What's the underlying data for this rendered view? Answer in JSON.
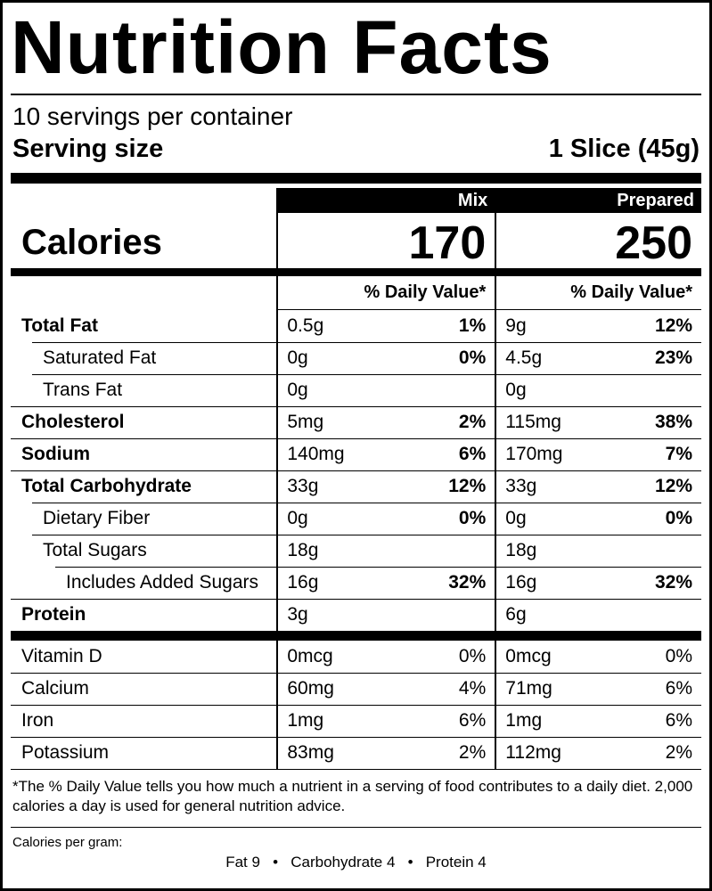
{
  "label": {
    "title": "Nutrition Facts",
    "servings_per_container": "10 servings per container",
    "serving_size": {
      "label": "Serving size",
      "value": "1 Slice (45g)"
    },
    "column_headers": {
      "mix": "Mix",
      "prepared": "Prepared"
    },
    "calories": {
      "label": "Calories",
      "mix": "170",
      "prepared": "250"
    },
    "daily_value_header": "% Daily Value*",
    "nutrients": [
      {
        "name": "Total Fat",
        "mix_amount": "0.5g",
        "mix_dv": "1%",
        "prepared_amount": "9g",
        "prepared_dv": "12%"
      },
      {
        "name": "Saturated Fat",
        "mix_amount": "0g",
        "mix_dv": "0%",
        "prepared_amount": "4.5g",
        "prepared_dv": "23%"
      },
      {
        "name": "Trans Fat",
        "mix_amount": "0g",
        "mix_dv": "",
        "prepared_amount": "0g",
        "prepared_dv": ""
      },
      {
        "name": "Cholesterol",
        "mix_amount": "5mg",
        "mix_dv": "2%",
        "prepared_amount": "115mg",
        "prepared_dv": "38%"
      },
      {
        "name": "Sodium",
        "mix_amount": "140mg",
        "mix_dv": "6%",
        "prepared_amount": "170mg",
        "prepared_dv": "7%"
      },
      {
        "name": "Total Carbohydrate",
        "mix_amount": "33g",
        "mix_dv": "12%",
        "prepared_amount": "33g",
        "prepared_dv": "12%"
      },
      {
        "name": "Dietary Fiber",
        "mix_amount": "0g",
        "mix_dv": "0%",
        "prepared_amount": "0g",
        "prepared_dv": "0%"
      },
      {
        "name": "Total Sugars",
        "mix_amount": "18g",
        "mix_dv": "",
        "prepared_amount": "18g",
        "prepared_dv": ""
      },
      {
        "name": "Includes Added Sugars",
        "mix_amount": "16g",
        "mix_dv": "32%",
        "prepared_amount": "16g",
        "prepared_dv": "32%"
      },
      {
        "name": "Protein",
        "mix_amount": "3g",
        "mix_dv": "",
        "prepared_amount": "6g",
        "prepared_dv": ""
      }
    ],
    "micronutrients": [
      {
        "name": "Vitamin D",
        "mix_amount": "0mcg",
        "mix_dv": "0%",
        "prepared_amount": "0mcg",
        "prepared_dv": "0%"
      },
      {
        "name": "Calcium",
        "mix_amount": "60mg",
        "mix_dv": "4%",
        "prepared_amount": "71mg",
        "prepared_dv": "6%"
      },
      {
        "name": "Iron",
        "mix_amount": "1mg",
        "mix_dv": "6%",
        "prepared_amount": "1mg",
        "prepared_dv": "6%"
      },
      {
        "name": "Potassium",
        "mix_amount": "83mg",
        "mix_dv": "2%",
        "prepared_amount": "112mg",
        "prepared_dv": "2%"
      }
    ],
    "footnote": "*The % Daily Value tells you how much a nutrient in a serving of food contributes to a daily diet. 2,000 calories a day is used for general nutrition advice.",
    "calories_per_gram": {
      "label": "Calories per gram:",
      "values": "Fat 9   •   Carbohydrate 4   •   Protein 4"
    }
  }
}
